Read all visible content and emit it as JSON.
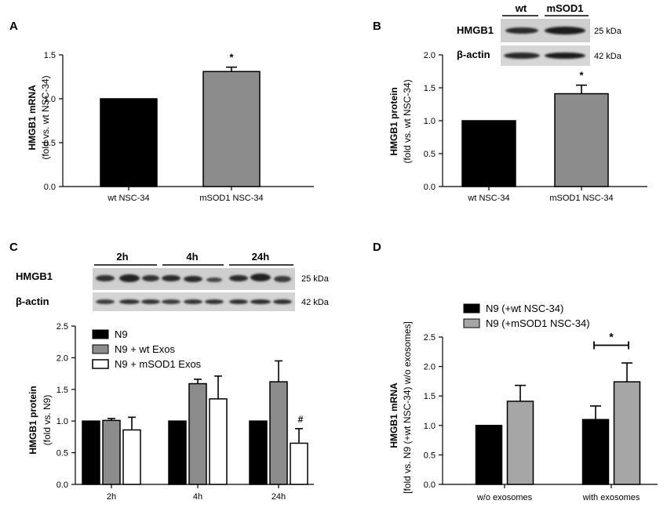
{
  "chart_data": [
    {
      "panel": "A",
      "type": "bar",
      "ylabel_main": "HMGB1 mRNA",
      "ylabel_sub": "(fold vs. wt NSC-34)",
      "ylim": [
        0,
        1.5
      ],
      "yticks": [
        "0.0",
        "0.5",
        "1.0",
        "1.5"
      ],
      "categories": [
        "wt NSC-34",
        "mSOD1 NSC-34"
      ],
      "values": [
        1.0,
        1.31
      ],
      "errors": [
        0,
        0.05
      ],
      "colors": [
        "#000000",
        "#8c8c8c"
      ],
      "annotations": [
        "",
        "*"
      ]
    },
    {
      "panel": "B",
      "type": "bar",
      "ylabel_main": "HMGB1 protein",
      "ylabel_sub": "(fold vs. wt NSC-34)",
      "ylim": [
        0,
        2.0
      ],
      "yticks": [
        "0.0",
        "0.5",
        "1.0",
        "1.5",
        "2.0"
      ],
      "categories": [
        "wt NSC-34",
        "mSOD1 NSC-34"
      ],
      "values": [
        1.0,
        1.41
      ],
      "errors": [
        0,
        0.13
      ],
      "colors": [
        "#000000",
        "#8c8c8c"
      ],
      "annotations": [
        "",
        "*"
      ],
      "blot": {
        "lanes": [
          "wt",
          "mSOD1"
        ],
        "rows": [
          {
            "name": "HMGB1",
            "kda": "25 kDa"
          },
          {
            "name": "β-actin",
            "kda": "42 kDa"
          }
        ]
      }
    },
    {
      "panel": "C",
      "type": "bar",
      "ylabel_main": "HMGB1 protein",
      "ylabel_sub": "(fold vs. N9)",
      "ylim": [
        0,
        2.5
      ],
      "yticks": [
        "0.0",
        "0.5",
        "1.0",
        "1.5",
        "2.0",
        "2.5"
      ],
      "categories": [
        "2h",
        "4h",
        "24h"
      ],
      "series": [
        {
          "name": "N9",
          "values": [
            1.0,
            1.0,
            1.0
          ],
          "errors": [
            0,
            0,
            0
          ],
          "color": "#000000"
        },
        {
          "name": "N9 + wt Exos",
          "values": [
            1.01,
            1.59,
            1.62
          ],
          "errors": [
            0.03,
            0.07,
            0.33
          ],
          "color": "#8c8c8c"
        },
        {
          "name": "N9 + mSOD1 Exos",
          "values": [
            0.86,
            1.35,
            0.65
          ],
          "errors": [
            0.2,
            0.36,
            0.23
          ],
          "color": "#ffffff"
        }
      ],
      "annotations": [
        {
          "category": "24h",
          "series": 2,
          "text": "#"
        }
      ],
      "blot": {
        "timepoints": [
          "2h",
          "4h",
          "24h"
        ],
        "rows": [
          {
            "name": "HMGB1",
            "kda": "25 kDa"
          },
          {
            "name": "β-actin",
            "kda": "42 kDa"
          }
        ]
      }
    },
    {
      "panel": "D",
      "type": "bar",
      "ylabel_main": "HMGB1 mRNA",
      "ylabel_sub": "[fold vs. N9 (+wt NSC-34) w/o exosomes]",
      "ylim": [
        0,
        2.5
      ],
      "yticks": [
        "0.0",
        "0.5",
        "1.0",
        "1.5",
        "2.0",
        "2.5"
      ],
      "categories": [
        "w/o exosomes",
        "with exosomes"
      ],
      "series": [
        {
          "name": "N9 (+wt NSC-34)",
          "values": [
            1.0,
            1.1
          ],
          "errors": [
            0,
            0.23
          ],
          "color": "#000000"
        },
        {
          "name": "N9 (+mSOD1 NSC-34)",
          "values": [
            1.41,
            1.74
          ],
          "errors": [
            0.27,
            0.32
          ],
          "color": "#a6a6a6"
        }
      ],
      "significance": {
        "category": "with exosomes",
        "text": "*"
      }
    }
  ]
}
